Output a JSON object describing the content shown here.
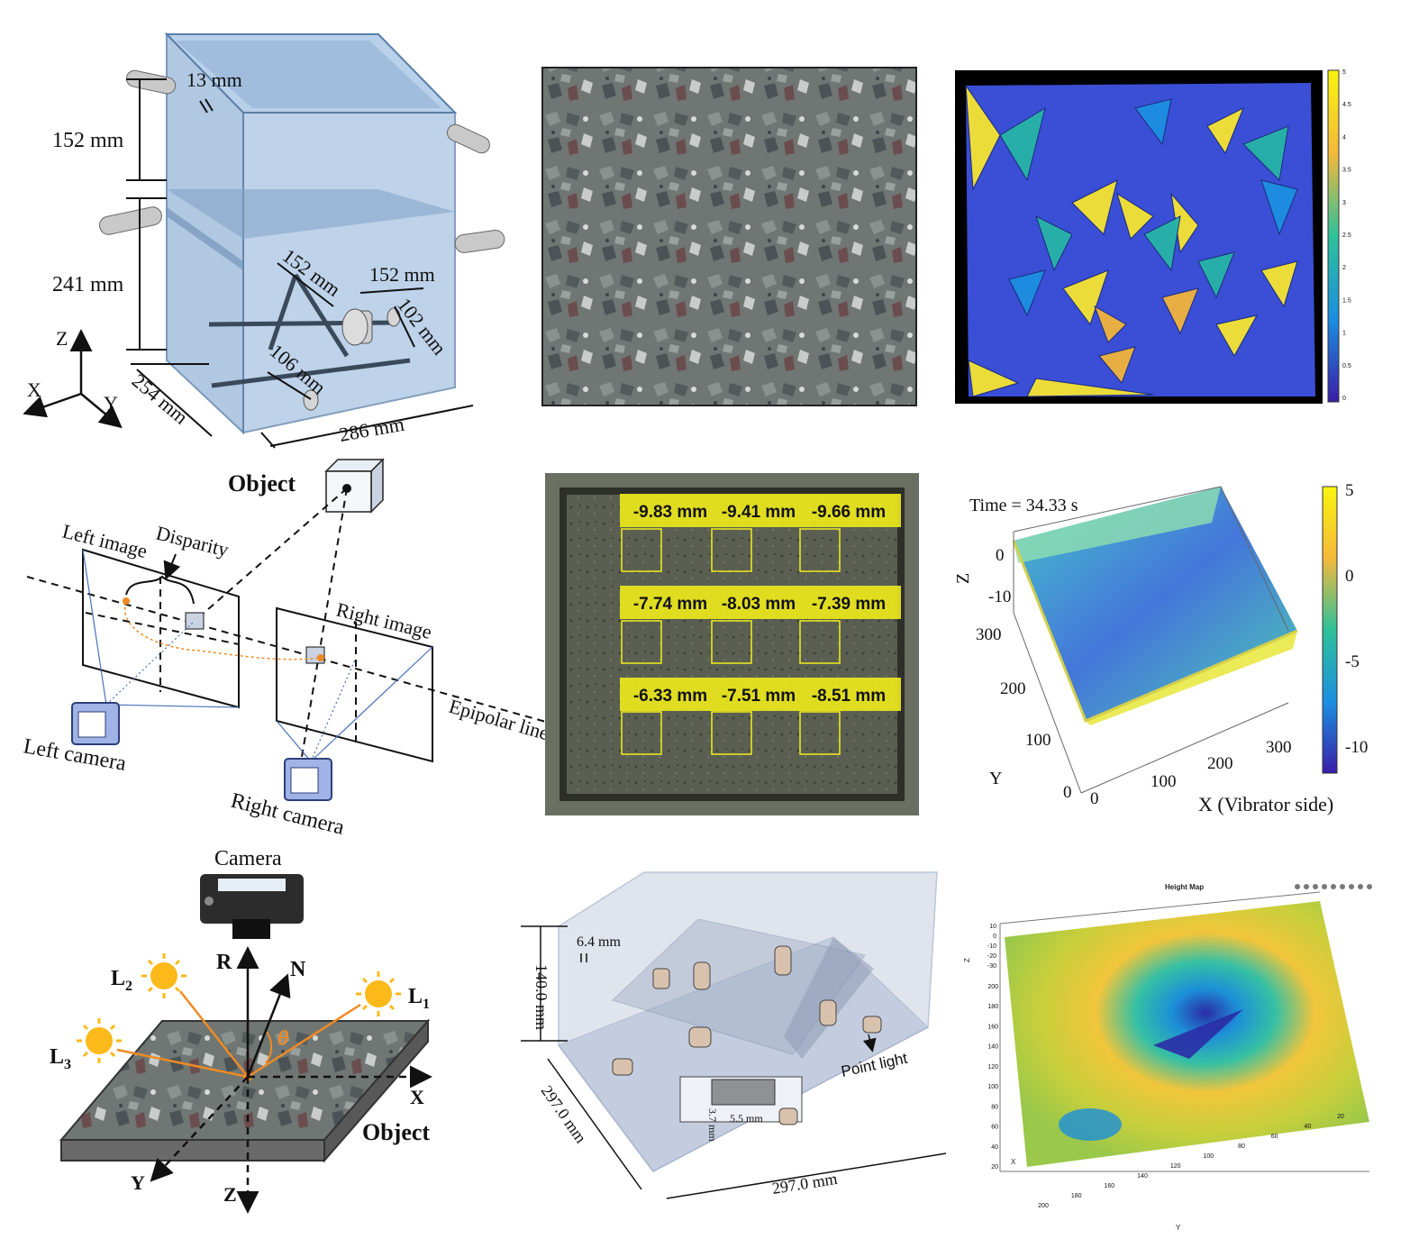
{
  "colors": {
    "tank_blue": "#a9c4e2",
    "tank_edge": "#5a7fa8",
    "concrete": "#6e7572",
    "mesh_blue": "#3a4fd6",
    "mesh_yellow": "#f5e431",
    "mesh_teal": "#27b3a6",
    "orange_ray": "#f08a24",
    "label_yellow": "#f3ef1a"
  },
  "panel_tank": {
    "dims": {
      "wall": "13 mm",
      "upper_height": "152 mm",
      "lower_height": "241 mm",
      "rod_a": "152 mm",
      "rod_b": "152 mm",
      "rod_c": "102 mm",
      "rod_d": "106 mm",
      "depth": "254 mm",
      "width": "286 mm"
    },
    "axes": {
      "z": "Z",
      "x": "X",
      "y": "Y"
    }
  },
  "panel_stereo": {
    "object": "Object",
    "left_image": "Left image",
    "disparity": "Disparity",
    "right_image": "Right image",
    "epipolar": "Epipolar line",
    "left_camera": "Left camera",
    "right_camera": "Right camera"
  },
  "panel_photometric": {
    "camera": "Camera",
    "r": "R",
    "n": "N",
    "theta": "θ",
    "l1": "L",
    "l1_sub": "1",
    "l2": "L",
    "l2_sub": "2",
    "l3": "L",
    "l3_sub": "3",
    "x": "X",
    "y": "Y",
    "z": "Z",
    "object": "Object"
  },
  "panel_heights": {
    "rows": [
      [
        "-9.83 mm",
        "-9.41 mm",
        "-9.66 mm"
      ],
      [
        "-7.74 mm",
        "-8.03 mm",
        "-7.39 mm"
      ],
      [
        "-6.33 mm",
        "-7.51 mm",
        "-8.51 mm"
      ]
    ]
  },
  "panel_mesh": {
    "colorbar_ticks": [
      "5",
      "4.5",
      "4",
      "3.5",
      "3",
      "2.5",
      "2",
      "1.5",
      "1",
      "0.5",
      "0"
    ]
  },
  "panel_surface": {
    "time": "Time = 34.33 s",
    "z_label": "Z",
    "z_ticks": [
      "0",
      "-10"
    ],
    "y_label": "Y",
    "y_ticks": [
      "300",
      "200",
      "100",
      "0"
    ],
    "x_label": "X (Vibrator side)",
    "x_ticks": [
      "0",
      "100",
      "200",
      "300"
    ],
    "colorbar_ticks": [
      "5",
      "0",
      "-5",
      "-10"
    ]
  },
  "panel_light_box": {
    "height": "140.0 mm",
    "wall": "6.4 mm",
    "side_a": "297.0 mm",
    "side_b": "297.0 mm",
    "sample_h": "3.7 mm",
    "sample_w": "5.5 mm",
    "point_light": "Point light"
  },
  "panel_heightmap": {
    "title": "Height Map",
    "z_label": "Z",
    "z_ticks": [
      "10",
      "0",
      "-10",
      "-20",
      "-30"
    ],
    "y_label": "Y",
    "y_ticks": [
      "200",
      "180",
      "160",
      "140",
      "120",
      "100",
      "80",
      "60",
      "40",
      "20"
    ],
    "x_label": "X",
    "x_ticks": [
      "200",
      "180",
      "160",
      "140",
      "120",
      "100",
      "80",
      "60",
      "40",
      "20"
    ]
  }
}
